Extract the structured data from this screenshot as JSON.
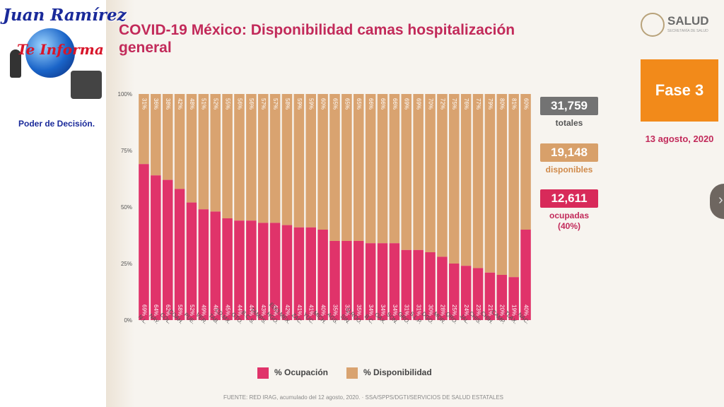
{
  "title": "COVID-19 México: Disponibilidad camas hospitalización general",
  "logo": {
    "line1": "Juan Ramírez",
    "line2": "Te Informa",
    "line3": "Poder de Decisión."
  },
  "salud": {
    "name": "SALUD",
    "sub": "SECRETARÍA DE SALUD"
  },
  "phase": "Fase 3",
  "date": "13 agosto, 2020",
  "stats": {
    "total_value": "31,759",
    "total_label": "totales",
    "available_value": "19,148",
    "available_label": "disponibles",
    "occupied_value": "12,611",
    "occupied_label": "ocupadas (40%)"
  },
  "source": "FUENTE: RED IRAG, acumulado del 12 agosto, 2020. · SSA/SPPS/DGTI/SERVICIOS DE SALUD ESTATALES",
  "colors": {
    "ocupacion": "#e0336a",
    "disponibilidad": "#d9a370",
    "title": "#c22a5a",
    "phase": "#f28a1a"
  },
  "chart_data": {
    "type": "bar",
    "stacked": true,
    "categories": [
      "N.L.",
      "NAY.",
      "COL.",
      "COAH.",
      "PUE.",
      "VER.",
      "TAB.",
      "CD.MX.",
      "GTO.",
      "B.C.S.",
      "TAMPS.",
      "HGO.",
      "EDO.MEX.",
      "ZAC.",
      "YUC.",
      "MICH.",
      "AGS.",
      "SIN.",
      "Q.ROO.",
      "B.C.",
      "OAX.",
      "SON.",
      "GRO.",
      "S.L.P.",
      "DGO.",
      "MOR.",
      "QRO.",
      "JAL.",
      "CHIS.",
      "CHIH.",
      "CAMP.",
      "TLAX.",
      "NAC."
    ],
    "series": [
      {
        "name": "% Ocupación",
        "values": [
          69,
          64,
          62,
          58,
          52,
          49,
          48,
          45,
          44,
          44,
          43,
          43,
          42,
          41,
          41,
          40,
          35,
          35,
          35,
          34,
          34,
          34,
          31,
          31,
          30,
          28,
          25,
          24,
          23,
          21,
          20,
          19,
          40
        ]
      },
      {
        "name": "% Disponibilidad",
        "values": [
          31,
          36,
          38,
          42,
          48,
          51,
          52,
          55,
          56,
          56,
          57,
          57,
          58,
          59,
          59,
          60,
          65,
          65,
          65,
          66,
          66,
          66,
          69,
          69,
          70,
          72,
          75,
          76,
          77,
          79,
          80,
          81,
          60
        ]
      }
    ],
    "yticks": [
      "0%",
      "25%",
      "50%",
      "75%",
      "100%"
    ],
    "ylim": [
      0,
      100
    ],
    "legend_position": "bottom"
  }
}
